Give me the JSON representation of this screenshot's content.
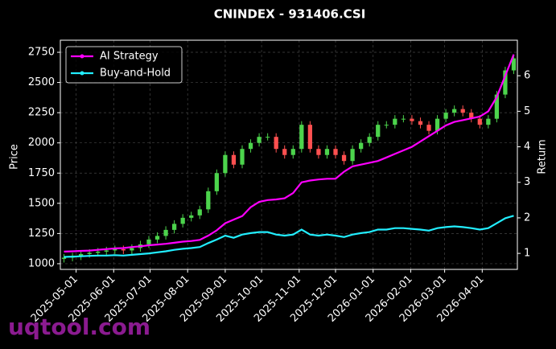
{
  "chart_data": {
    "type": "candlestick",
    "title": "CNINDEX - 931406.CSI",
    "x": [
      "2025-04-21",
      "2025-04-28",
      "2025-05-05",
      "2025-05-12",
      "2025-05-19",
      "2025-05-26",
      "2025-06-02",
      "2025-06-09",
      "2025-06-16",
      "2025-06-23",
      "2025-06-30",
      "2025-07-07",
      "2025-07-14",
      "2025-07-21",
      "2025-07-28",
      "2025-08-04",
      "2025-08-11",
      "2025-08-18",
      "2025-08-25",
      "2025-09-01",
      "2025-09-08",
      "2025-09-15",
      "2025-09-22",
      "2025-09-29",
      "2025-10-06",
      "2025-10-13",
      "2025-10-20",
      "2025-10-27",
      "2025-11-03",
      "2025-11-10",
      "2025-11-17",
      "2025-11-24",
      "2025-12-01",
      "2025-12-08",
      "2025-12-15",
      "2025-12-22",
      "2025-12-29",
      "2026-01-05",
      "2026-01-12",
      "2026-01-19",
      "2026-01-26",
      "2026-02-02",
      "2026-02-09",
      "2026-02-16",
      "2026-02-23",
      "2026-03-02",
      "2026-03-09",
      "2026-03-16",
      "2026-03-23",
      "2026-03-30",
      "2026-04-06",
      "2026-04-13",
      "2026-04-20",
      "2026-04-27"
    ],
    "open": [
      1040,
      1050,
      1060,
      1080,
      1090,
      1100,
      1110,
      1120,
      1110,
      1130,
      1160,
      1200,
      1230,
      1280,
      1330,
      1380,
      1400,
      1450,
      1600,
      1750,
      1900,
      1820,
      1950,
      2000,
      2050,
      2050,
      1950,
      1900,
      1950,
      2150,
      1950,
      1900,
      1950,
      1900,
      1850,
      1950,
      2000,
      2050,
      2150,
      2150,
      2200,
      2200,
      2180,
      2150,
      2100,
      2200,
      2250,
      2280,
      2250,
      2200,
      2150,
      2200,
      2400,
      2600
    ],
    "high": [
      1080,
      1090,
      1110,
      1120,
      1130,
      1140,
      1150,
      1150,
      1160,
      1190,
      1230,
      1260,
      1310,
      1360,
      1410,
      1430,
      1480,
      1630,
      1780,
      1930,
      1930,
      1980,
      2030,
      2080,
      2080,
      2080,
      1980,
      1980,
      2180,
      2180,
      1980,
      1980,
      1980,
      1930,
      1980,
      2030,
      2080,
      2180,
      2180,
      2230,
      2230,
      2230,
      2210,
      2180,
      2230,
      2280,
      2310,
      2310,
      2280,
      2230,
      2230,
      2430,
      2630,
      2730
    ],
    "low": [
      1010,
      1020,
      1030,
      1050,
      1060,
      1070,
      1080,
      1080,
      1080,
      1100,
      1130,
      1170,
      1200,
      1250,
      1300,
      1350,
      1370,
      1420,
      1570,
      1720,
      1790,
      1790,
      1920,
      1970,
      2020,
      1920,
      1870,
      1870,
      1920,
      1920,
      1870,
      1870,
      1870,
      1820,
      1820,
      1920,
      1970,
      2020,
      2120,
      2120,
      2170,
      2150,
      2120,
      2070,
      2070,
      2170,
      2220,
      2220,
      2170,
      2120,
      2120,
      2170,
      2370,
      2570
    ],
    "close": [
      1050,
      1060,
      1080,
      1090,
      1100,
      1110,
      1120,
      1110,
      1130,
      1160,
      1200,
      1230,
      1280,
      1330,
      1380,
      1400,
      1450,
      1600,
      1750,
      1900,
      1820,
      1950,
      2000,
      2050,
      2050,
      1950,
      1900,
      1950,
      2150,
      1950,
      1900,
      1950,
      1900,
      1850,
      1950,
      2000,
      2050,
      2150,
      2150,
      2200,
      2200,
      2180,
      2150,
      2100,
      2200,
      2250,
      2280,
      2250,
      2200,
      2150,
      2200,
      2400,
      2600,
      2700
    ],
    "up_color": "#4cd44c",
    "down_color": "#ff5050",
    "series": [
      {
        "name": "AI Strategy",
        "color": "#ff00ff",
        "axis": "y2",
        "values": [
          1.05,
          1.06,
          1.07,
          1.08,
          1.1,
          1.12,
          1.14,
          1.15,
          1.18,
          1.2,
          1.23,
          1.25,
          1.27,
          1.3,
          1.33,
          1.35,
          1.38,
          1.5,
          1.65,
          1.85,
          1.95,
          2.05,
          2.3,
          2.45,
          2.5,
          2.52,
          2.55,
          2.7,
          3.0,
          3.05,
          3.08,
          3.1,
          3.1,
          3.3,
          3.45,
          3.5,
          3.55,
          3.6,
          3.7,
          3.8,
          3.9,
          4.0,
          4.15,
          4.3,
          4.45,
          4.6,
          4.7,
          4.75,
          4.8,
          4.85,
          5.0,
          5.4,
          6.0,
          6.6
        ]
      },
      {
        "name": "Buy-and-Hold",
        "color": "#22eeff",
        "axis": "y2",
        "values": [
          0.9,
          0.91,
          0.92,
          0.93,
          0.94,
          0.94,
          0.95,
          0.94,
          0.96,
          0.98,
          1.0,
          1.03,
          1.06,
          1.1,
          1.13,
          1.15,
          1.18,
          1.29,
          1.39,
          1.5,
          1.44,
          1.53,
          1.57,
          1.6,
          1.6,
          1.53,
          1.5,
          1.53,
          1.67,
          1.53,
          1.5,
          1.53,
          1.5,
          1.46,
          1.53,
          1.57,
          1.6,
          1.67,
          1.67,
          1.71,
          1.71,
          1.69,
          1.67,
          1.64,
          1.71,
          1.74,
          1.76,
          1.74,
          1.71,
          1.67,
          1.71,
          1.85,
          1.99,
          2.06
        ]
      }
    ],
    "xlim": [
      "2025-04-18",
      "2026-04-30"
    ],
    "xticks": [
      "2025-05-01",
      "2025-06-01",
      "2025-07-01",
      "2025-08-01",
      "2025-09-01",
      "2025-10-01",
      "2025-11-01",
      "2025-12-01",
      "2026-01-01",
      "2026-02-01",
      "2026-03-01",
      "2026-04-01"
    ],
    "ylabel": "Price",
    "ylim": [
      953,
      2850
    ],
    "yticks": [
      1000,
      1250,
      1500,
      1750,
      2000,
      2250,
      2500,
      2750
    ],
    "y2label": "Return",
    "y2lim": [
      0.55,
      7.0
    ],
    "y2ticks": [
      1,
      2,
      3,
      4,
      5,
      6
    ],
    "grid": true,
    "legend": "upper left",
    "watermark": "uqtool.com"
  }
}
